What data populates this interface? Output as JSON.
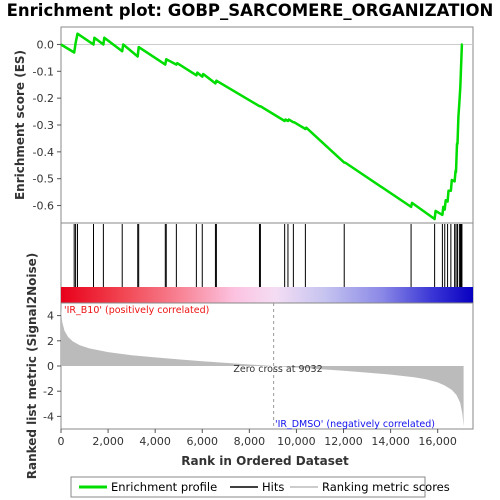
{
  "chart_data": {
    "type": "line",
    "title": "Enrichment plot: GOBP_SARCOMERE_ORGANIZATION",
    "xlabel": "Rank in Ordered Dataset",
    "xlim": [
      0,
      17500
    ],
    "x_ticks": [
      0,
      2000,
      4000,
      6000,
      8000,
      10000,
      12000,
      14000,
      16000
    ],
    "x_tick_labels": [
      "0",
      "2,000",
      "4,000",
      "6,000",
      "8,000",
      "10,000",
      "12,000",
      "14,000",
      "16,000"
    ],
    "es_panel": {
      "ylabel": "Enrichment score (ES)",
      "ylim": [
        -0.665,
        0.065
      ],
      "y_ticks": [
        0.0,
        -0.1,
        -0.2,
        -0.3,
        -0.4,
        -0.5,
        -0.6
      ],
      "y_tick_labels": [
        "0.0",
        "-0.1",
        "-0.2",
        "-0.3",
        "-0.4",
        "-0.5",
        "-0.6"
      ],
      "series": [
        {
          "name": "Enrichment profile",
          "color": "#00dd00",
          "x": [
            0,
            560,
            620,
            700,
            1380,
            1420,
            1800,
            1840,
            2600,
            2640,
            3260,
            3300,
            4430,
            4470,
            4900,
            4940,
            5750,
            5790,
            6000,
            6040,
            6560,
            6600,
            8430,
            8470,
            9500,
            9540,
            9640,
            9680,
            9870,
            9910,
            10380,
            10420,
            12030,
            12070,
            14870,
            14910,
            15870,
            15910,
            16200,
            16240,
            16300,
            16340,
            16420,
            16460,
            16560,
            16600,
            16720,
            16760,
            16780,
            16820,
            16840,
            16880,
            16920,
            16960,
            16990,
            17030,
            17060
          ],
          "y": [
            0.0,
            -0.03,
            0.005,
            0.04,
            0.0,
            0.025,
            0.0,
            0.025,
            -0.025,
            0.0,
            -0.045,
            -0.01,
            -0.075,
            -0.055,
            -0.075,
            -0.07,
            -0.115,
            -0.105,
            -0.12,
            -0.11,
            -0.145,
            -0.135,
            -0.23,
            -0.23,
            -0.285,
            -0.28,
            -0.285,
            -0.28,
            -0.29,
            -0.29,
            -0.315,
            -0.31,
            -0.44,
            -0.44,
            -0.605,
            -0.59,
            -0.65,
            -0.62,
            -0.635,
            -0.605,
            -0.615,
            -0.58,
            -0.585,
            -0.545,
            -0.545,
            -0.505,
            -0.51,
            -0.47,
            -0.475,
            -0.37,
            -0.37,
            -0.27,
            -0.22,
            -0.16,
            -0.09,
            0.0,
            0.0
          ]
        }
      ]
    },
    "hits": {
      "name": "Hits",
      "x": [
        560,
        620,
        700,
        1380,
        1800,
        2600,
        3260,
        3300,
        4430,
        4470,
        4900,
        5750,
        6000,
        6560,
        6600,
        8430,
        8470,
        9500,
        9640,
        9870,
        10380,
        12030,
        14870,
        15870,
        16200,
        16300,
        16420,
        16560,
        16720,
        16780,
        16840,
        16920,
        16960,
        16990,
        17030
      ]
    },
    "metric_panel": {
      "name": "Ranking metric scores",
      "ylabel": "Ranked list metric (Signal2Noise)",
      "ylim": [
        -5,
        5
      ],
      "y_ticks": [
        4,
        2,
        0,
        -2,
        -4
      ],
      "y_tick_labels": [
        "4",
        "2",
        "0",
        "-2",
        "-4"
      ],
      "zero_cross": 9032,
      "zero_cross_label": "Zero cross at 9032",
      "positive_label": "'IR_B10' (positively correlated)",
      "negative_label": "'IR_DMSO' (negatively correlated)",
      "color": "#bbbbbb",
      "x": [
        0,
        50,
        150,
        300,
        500,
        800,
        1200,
        2000,
        3000,
        4000,
        5000,
        6000,
        7000,
        8000,
        9032,
        10000,
        11000,
        12000,
        13000,
        14000,
        15000,
        15500,
        16000,
        16300,
        16600,
        16800,
        16950,
        17050,
        17100
      ],
      "values": [
        4.6,
        3.5,
        2.8,
        2.3,
        1.95,
        1.65,
        1.4,
        1.1,
        0.85,
        0.68,
        0.52,
        0.38,
        0.25,
        0.12,
        0.0,
        -0.12,
        -0.25,
        -0.38,
        -0.52,
        -0.68,
        -0.9,
        -1.05,
        -1.3,
        -1.55,
        -1.9,
        -2.3,
        -2.9,
        -3.8,
        -4.8
      ]
    },
    "colors": {
      "profile": "#00dd00",
      "hits": "#000000",
      "positive_text": "#ee1111",
      "negative_text": "#1111ee",
      "zero_line": "#999999"
    },
    "legend": {
      "placement": "bottom",
      "entries": [
        {
          "label": "Enrichment profile",
          "color": "#00dd00"
        },
        {
          "label": "Hits",
          "color": "#000000"
        },
        {
          "label": "Ranking metric scores",
          "color": "#bbbbbb"
        }
      ]
    }
  }
}
